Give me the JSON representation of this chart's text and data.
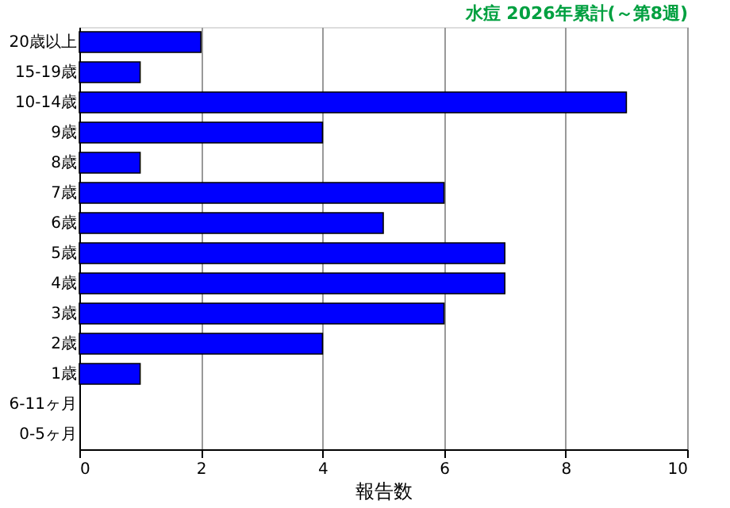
{
  "chart_data": {
    "type": "bar",
    "orientation": "horizontal",
    "title": "水痘 2026年累計(～第8週)",
    "xlabel": "報告数",
    "categories": [
      "20歳以上",
      "15-19歳",
      "10-14歳",
      "9歳",
      "8歳",
      "7歳",
      "6歳",
      "5歳",
      "4歳",
      "3歳",
      "2歳",
      "1歳",
      "6-11ヶ月",
      "0-5ヶ月"
    ],
    "values": [
      2,
      1,
      9,
      4,
      1,
      6,
      5,
      7,
      7,
      6,
      4,
      1,
      0,
      0
    ],
    "color": "#0000ff",
    "xlim": [
      0,
      10
    ],
    "xticks": [
      0,
      2,
      4,
      6,
      8,
      10
    ],
    "grid": "x"
  }
}
